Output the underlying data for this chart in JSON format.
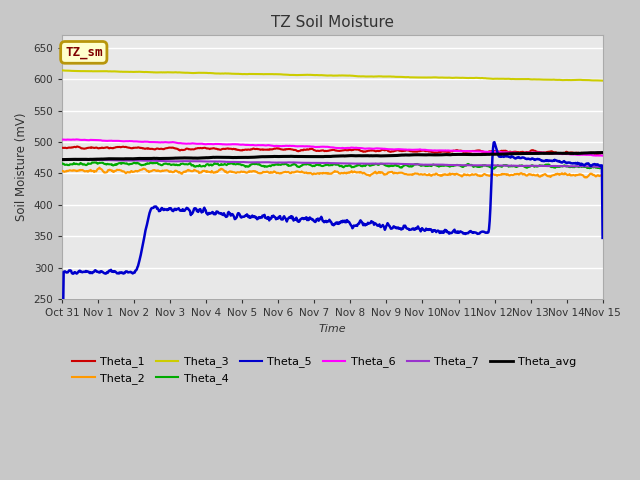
{
  "title": "TZ Soil Moisture",
  "xlabel": "Time",
  "ylabel": "Soil Moisture (mV)",
  "ylim": [
    250,
    670
  ],
  "yticks": [
    250,
    300,
    350,
    400,
    450,
    500,
    550,
    600,
    650
  ],
  "plot_bg": "#e8e8e8",
  "fig_bg": "#c8c8c8",
  "grid_color": "#ffffff",
  "label_box_text": "TZ_sm",
  "label_box_facecolor": "#ffffcc",
  "label_box_edgecolor": "#b8960c",
  "label_box_textcolor": "#800000",
  "series": {
    "Theta_1": {
      "color": "#cc0000",
      "lw": 1.5
    },
    "Theta_2": {
      "color": "#ff9900",
      "lw": 1.5
    },
    "Theta_3": {
      "color": "#cccc00",
      "lw": 1.5
    },
    "Theta_4": {
      "color": "#00aa00",
      "lw": 1.5
    },
    "Theta_5": {
      "color": "#0000cc",
      "lw": 1.8
    },
    "Theta_6": {
      "color": "#ff00ff",
      "lw": 1.5
    },
    "Theta_7": {
      "color": "#9933cc",
      "lw": 1.5
    },
    "Theta_avg": {
      "color": "#000000",
      "lw": 2.2
    }
  },
  "x_tick_labels": [
    "Oct 31",
    "Nov 1",
    "Nov 2",
    "Nov 3",
    "Nov 4",
    "Nov 5",
    "Nov 6",
    "Nov 7",
    "Nov 8",
    "Nov 9",
    "Nov 10",
    "Nov 11",
    "Nov 12",
    "Nov 13",
    "Nov 14",
    "Nov 15"
  ],
  "n_points": 800,
  "date_start": 0,
  "date_end": 15,
  "figsize": [
    6.4,
    4.8
  ],
  "dpi": 100
}
